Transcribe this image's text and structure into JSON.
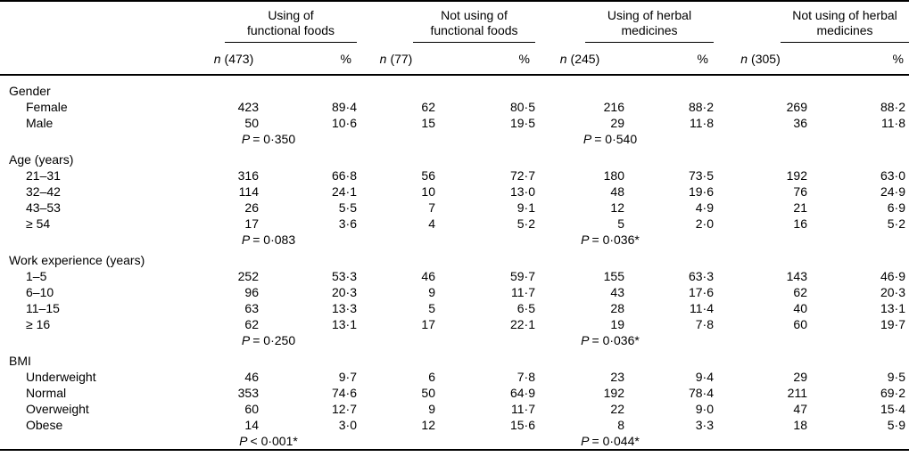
{
  "table": {
    "p_label": "P",
    "col_groups": [
      {
        "line1": "Using of",
        "line2": "functional foods",
        "n_label": "n",
        "n_count": "(473)",
        "pct_label": "%"
      },
      {
        "line1": "Not using of",
        "line2": "functional foods",
        "n_label": "n",
        "n_count": "(77)",
        "pct_label": "%"
      },
      {
        "line1": "Using of herbal",
        "line2": "medicines",
        "n_label": "n",
        "n_count": "(245)",
        "pct_label": "%"
      },
      {
        "line1": "Not using of herbal",
        "line2": "medicines",
        "n_label": "n",
        "n_count": "(305)",
        "pct_label": "%"
      }
    ],
    "sections": [
      {
        "label": "Gender",
        "rows": [
          {
            "label": "Female",
            "values": [
              "423",
              "89·4",
              "62",
              "80·5",
              "216",
              "88·2",
              "269",
              "88·2"
            ]
          },
          {
            "label": "Male",
            "values": [
              "50",
              "10·6",
              "15",
              "19·5",
              "29",
              "11·8",
              "36",
              "11·8"
            ]
          }
        ],
        "p_functional_foods": "= 0·350",
        "p_herbal_medicines": "= 0·540"
      },
      {
        "label": "Age (years)",
        "rows": [
          {
            "label": "21–31",
            "values": [
              "316",
              "66·8",
              "56",
              "72·7",
              "180",
              "73·5",
              "192",
              "63·0"
            ]
          },
          {
            "label": "32–42",
            "values": [
              "114",
              "24·1",
              "10",
              "13·0",
              "48",
              "19·6",
              "76",
              "24·9"
            ]
          },
          {
            "label": "43–53",
            "values": [
              "26",
              "5·5",
              "7",
              "9·1",
              "12",
              "4·9",
              "21",
              "6·9"
            ]
          },
          {
            "label": "≥ 54",
            "values": [
              "17",
              "3·6",
              "4",
              "5·2",
              "5",
              "2·0",
              "16",
              "5·2"
            ]
          }
        ],
        "p_functional_foods": "= 0·083",
        "p_herbal_medicines": "= 0·036*"
      },
      {
        "label": "Work experience (years)",
        "rows": [
          {
            "label": "1–5",
            "values": [
              "252",
              "53·3",
              "46",
              "59·7",
              "155",
              "63·3",
              "143",
              "46·9"
            ]
          },
          {
            "label": "6–10",
            "values": [
              "96",
              "20·3",
              "9",
              "11·7",
              "43",
              "17·6",
              "62",
              "20·3"
            ]
          },
          {
            "label": "11–15",
            "values": [
              "63",
              "13·3",
              "5",
              "6·5",
              "28",
              "11·4",
              "40",
              "13·1"
            ]
          },
          {
            "label": "≥ 16",
            "values": [
              "62",
              "13·1",
              "17",
              "22·1",
              "19",
              "7·8",
              "60",
              "19·7"
            ]
          }
        ],
        "p_functional_foods": "= 0·250",
        "p_herbal_medicines": "= 0·036*"
      },
      {
        "label": "BMI",
        "rows": [
          {
            "label": "Underweight",
            "values": [
              "46",
              "9·7",
              "6",
              "7·8",
              "23",
              "9·4",
              "29",
              "9·5"
            ]
          },
          {
            "label": "Normal",
            "values": [
              "353",
              "74·6",
              "50",
              "64·9",
              "192",
              "78·4",
              "211",
              "69·2"
            ]
          },
          {
            "label": "Overweight",
            "values": [
              "60",
              "12·7",
              "9",
              "11·7",
              "22",
              "9·0",
              "47",
              "15·4"
            ]
          },
          {
            "label": "Obese",
            "values": [
              "14",
              "3·0",
              "12",
              "15·6",
              "8",
              "3·3",
              "18",
              "5·9"
            ]
          }
        ],
        "p_functional_foods": "< 0·001*",
        "p_herbal_medicines": "= 0·044*"
      }
    ]
  }
}
